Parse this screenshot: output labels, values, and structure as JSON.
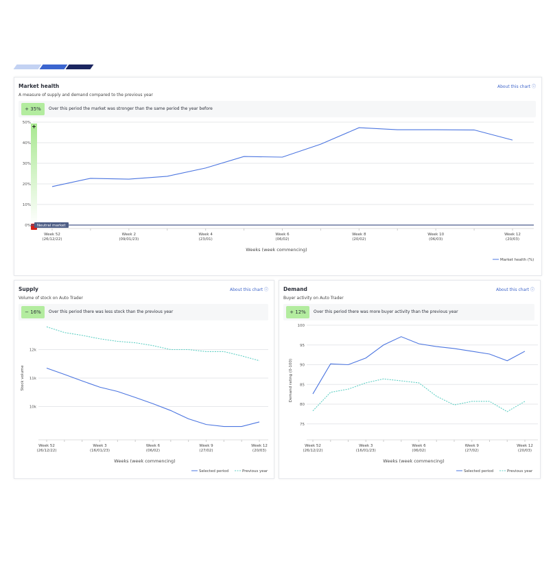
{
  "brand_colors": [
    "#c3d2f3",
    "#3b65cf",
    "#1b2660"
  ],
  "colors": {
    "selected": "#4a74e0",
    "previous": "#5fcfc4",
    "badge": "#b3ec9f"
  },
  "market": {
    "title": "Market health",
    "subtitle": "A measure of supply and demand compared to the previous year",
    "about": "About this chart ⓘ",
    "badge": "+ 35%",
    "banner": "Over this period the market was stronger than the same period the year before",
    "neutral": "Neutral market",
    "plus": "+",
    "xlabel": "Weeks (week commencing)",
    "legend": "Market health (%)"
  },
  "supply": {
    "title": "Supply",
    "subtitle": "Volume of stock on Auto Trader",
    "about": "About this chart ⓘ",
    "badge": "− 16%",
    "banner": "Over this period there was less stock than the previous year",
    "legend_selected": "Selected period",
    "legend_previous": "Previous year"
  },
  "demand": {
    "title": "Demand",
    "subtitle": "Buyer activity on Auto Trader",
    "about": "About this chart ⓘ",
    "badge": "+ 12%",
    "banner": "Over this period there was more buyer activity than the previous year",
    "legend_selected": "Selected period",
    "legend_previous": "Previous year"
  },
  "chart_data": [
    {
      "type": "line",
      "xlabel": "Weeks (week commencing)",
      "ylabel": "",
      "ylim": [
        0,
        50
      ],
      "yticks": [
        "0%",
        "10%",
        "20%",
        "30%",
        "40%",
        "50%"
      ],
      "xticks": [
        [
          "Week 52",
          "(26/12/22)"
        ],
        [
          "Week 2",
          "(09/01/23)"
        ],
        [
          "Week 4",
          "(23/01)"
        ],
        [
          "Week 6",
          "(06/02)"
        ],
        [
          "Week 8",
          "(20/02)"
        ],
        [
          "Week 10",
          "(06/03)"
        ],
        [
          "Week 12",
          "(20/03)"
        ]
      ],
      "series": [
        {
          "name": "Market health (%)",
          "values": [
            18.7,
            22.7,
            22.3,
            23.7,
            27.7,
            33.3,
            33,
            39.3,
            47.3,
            46.3,
            46.3,
            46.2,
            41.3
          ]
        }
      ]
    },
    {
      "type": "line",
      "xlabel": "Weeks (week commencing)",
      "ylabel": "Stock volume",
      "ylim": [
        9000,
        13000
      ],
      "yticks": [
        "10k",
        "11k",
        "12k"
      ],
      "xticks": [
        [
          "Week 52",
          "(26/12/22)"
        ],
        [
          "Week 3",
          "(16/01/23)"
        ],
        [
          "Week 6",
          "(06/02)"
        ],
        [
          "Week 9",
          "(27/02)"
        ],
        [
          "Week 12",
          "(20/03)"
        ]
      ],
      "series": [
        {
          "name": "Selected period",
          "values": [
            11350,
            11130,
            10900,
            10680,
            10530,
            10320,
            10100,
            9860,
            9570,
            9370,
            9300,
            9300,
            9460
          ]
        },
        {
          "name": "Previous year",
          "values": [
            12800,
            12600,
            12500,
            12380,
            12290,
            12240,
            12140,
            12000,
            12000,
            11930,
            11930,
            11780,
            11610
          ]
        }
      ]
    },
    {
      "type": "line",
      "xlabel": "Weeks (week commencing)",
      "ylabel": "Demand rating (0-100)",
      "ylim": [
        72,
        100
      ],
      "yticks": [
        "75",
        "80",
        "85",
        "90",
        "95",
        "100"
      ],
      "xticks": [
        [
          "Week 52",
          "(26/12/22)"
        ],
        [
          "Week 3",
          "(16/01/23)"
        ],
        [
          "Week 6",
          "(06/02)"
        ],
        [
          "Week 9",
          "(27/02)"
        ],
        [
          "Week 12",
          "(20/03)"
        ]
      ],
      "series": [
        {
          "name": "Selected period",
          "values": [
            82.6,
            90.2,
            90,
            91.7,
            95,
            97.1,
            95.3,
            94.6,
            94.1,
            93.4,
            92.7,
            91,
            93.4
          ]
        },
        {
          "name": "Previous year",
          "values": [
            78.3,
            83,
            83.8,
            85.4,
            86.4,
            85.9,
            85.4,
            82,
            79.8,
            80.7,
            80.7,
            78.1,
            80.7
          ]
        }
      ]
    }
  ]
}
